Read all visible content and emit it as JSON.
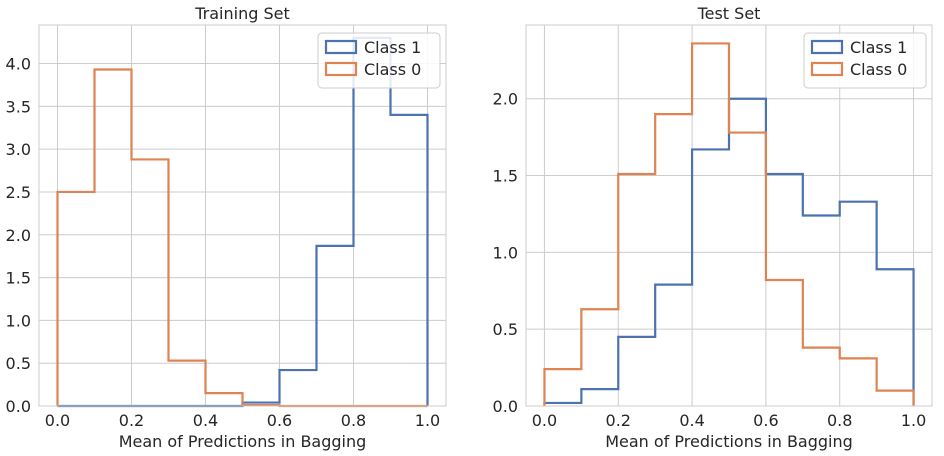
{
  "chart_data": [
    {
      "type": "histogram-step",
      "title": "Training Set",
      "xlabel": "Mean of Predictions in Bagging",
      "ylabel": "",
      "xlim": [
        -0.05,
        1.05
      ],
      "ylim": [
        0,
        4.45
      ],
      "xticks": [
        0.0,
        0.2,
        0.4,
        0.6,
        0.8,
        1.0
      ],
      "xtick_labels": [
        "0.0",
        "0.2",
        "0.4",
        "0.6",
        "0.8",
        "1.0"
      ],
      "yticks": [
        0.0,
        0.5,
        1.0,
        1.5,
        2.0,
        2.5,
        3.0,
        3.5,
        4.0
      ],
      "ytick_labels": [
        "0.0",
        "0.5",
        "1.0",
        "1.5",
        "2.0",
        "2.5",
        "3.0",
        "3.5",
        "4.0"
      ],
      "grid": true,
      "legend_position": "top-right",
      "bin_edges": [
        0.0,
        0.1,
        0.2,
        0.3,
        0.4,
        0.5,
        0.6,
        0.7,
        0.8,
        0.9,
        1.0
      ],
      "series": [
        {
          "name": "Class 1",
          "color": "#4c72b0",
          "values": [
            0.0,
            0.0,
            0.0,
            0.0,
            0.0,
            0.04,
            0.42,
            1.87,
            4.3,
            3.4
          ]
        },
        {
          "name": "Class 0",
          "color": "#dd8452",
          "values": [
            2.5,
            3.93,
            2.88,
            0.53,
            0.15,
            0.01,
            0.0,
            0.0,
            0.0,
            0.0
          ]
        }
      ]
    },
    {
      "type": "histogram-step",
      "title": "Test Set",
      "xlabel": "Mean of Predictions in Bagging",
      "ylabel": "",
      "xlim": [
        -0.05,
        1.05
      ],
      "ylim": [
        0,
        2.48
      ],
      "xticks": [
        0.0,
        0.2,
        0.4,
        0.6,
        0.8,
        1.0
      ],
      "xtick_labels": [
        "0.0",
        "0.2",
        "0.4",
        "0.6",
        "0.8",
        "1.0"
      ],
      "yticks": [
        0.0,
        0.5,
        1.0,
        1.5,
        2.0
      ],
      "ytick_labels": [
        "0.0",
        "0.5",
        "1.0",
        "1.5",
        "2.0"
      ],
      "grid": true,
      "legend_position": "top-right",
      "bin_edges": [
        0.0,
        0.1,
        0.2,
        0.3,
        0.4,
        0.5,
        0.6,
        0.7,
        0.8,
        0.9,
        1.0
      ],
      "series": [
        {
          "name": "Class 1",
          "color": "#4c72b0",
          "values": [
            0.02,
            0.11,
            0.45,
            0.79,
            1.67,
            2.0,
            1.51,
            1.24,
            1.33,
            0.89
          ]
        },
        {
          "name": "Class 0",
          "color": "#dd8452",
          "values": [
            0.24,
            0.63,
            1.51,
            1.9,
            2.36,
            1.78,
            0.82,
            0.38,
            0.31,
            0.1
          ]
        }
      ]
    }
  ]
}
